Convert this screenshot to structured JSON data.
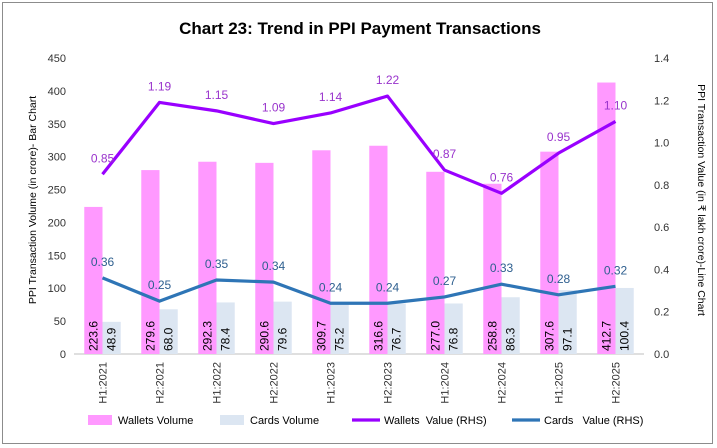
{
  "chart_data": {
    "type": "bar",
    "title": "Chart 23: Trend in PPI Payment Transactions",
    "categories": [
      "H1:2021",
      "H2:2021",
      "H1:2022",
      "H2:2022",
      "H1:2023",
      "H2:2023",
      "H1:2024",
      "H2:2024",
      "H1:2025",
      "H2:2025"
    ],
    "ylabel_left": "PPI Transaction Volume (in crore)- Bar Chart",
    "ylabel_right": "PPI Transaction Value (in ₹ lakh crore)-Line Chart",
    "ylim_left": [
      0,
      450
    ],
    "yticks_left": [
      0,
      50,
      100,
      150,
      200,
      250,
      300,
      350,
      400,
      450
    ],
    "ylim_right": [
      0.0,
      1.4
    ],
    "yticks_right": [
      "0.0",
      "0.2",
      "0.4",
      "0.6",
      "0.8",
      "1.0",
      "1.2",
      "1.4"
    ],
    "bar_series": [
      {
        "name": "Wallets Volume",
        "color": "#ff99ff",
        "values": [
          223.6,
          279.6,
          292.3,
          290.6,
          309.7,
          316.6,
          277.0,
          258.8,
          307.6,
          412.7
        ]
      },
      {
        "name": "Cards  Volume",
        "color": "#dce6f2",
        "values": [
          48.9,
          68.0,
          78.4,
          79.6,
          75.2,
          76.7,
          76.8,
          86.3,
          97.1,
          100.4
        ]
      }
    ],
    "line_series": [
      {
        "name": "Wallets  Value (RHS)",
        "color": "#9900ff",
        "values": [
          0.85,
          1.19,
          1.15,
          1.09,
          1.14,
          1.22,
          0.87,
          0.76,
          0.95,
          1.1
        ],
        "labels": [
          "0.85",
          "1.19",
          "1.15",
          "1.09",
          "1.14",
          "1.22",
          "0.87",
          "0.76",
          "0.95",
          "1.10"
        ],
        "label_color": "#9933cc"
      },
      {
        "name": "Cards   Value (RHS)",
        "color": "#2e75b6",
        "values": [
          0.36,
          0.25,
          0.35,
          0.34,
          0.24,
          0.24,
          0.27,
          0.33,
          0.28,
          0.32
        ],
        "labels": [
          "0.36",
          "0.25",
          "0.35",
          "0.34",
          "0.24",
          "0.24",
          "0.27",
          "0.33",
          "0.28",
          "0.32"
        ],
        "label_color": "#2e5f8f"
      }
    ],
    "grid": false,
    "legend_position": "bottom"
  }
}
